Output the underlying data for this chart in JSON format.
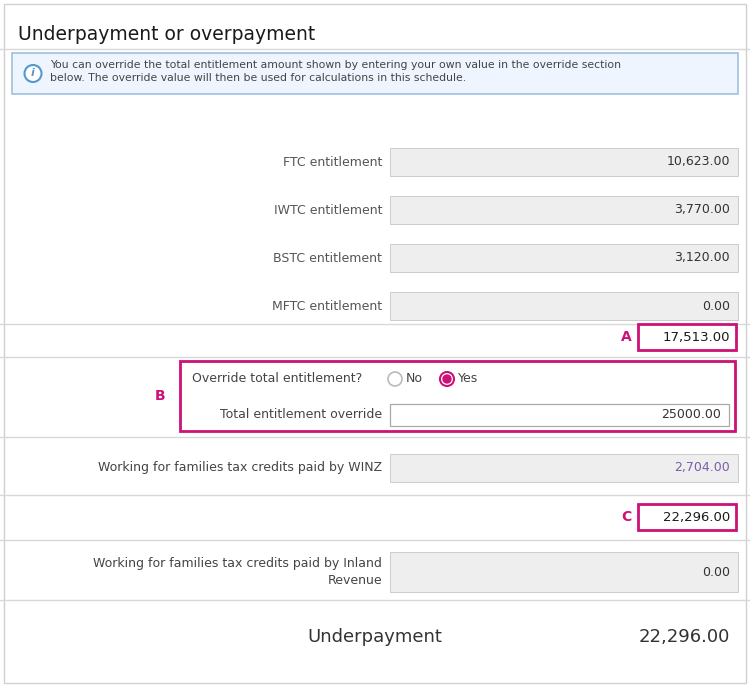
{
  "title": "Underpayment or overpayment",
  "info_text_line1": "You can override the total entitlement amount shown by entering your own value in the override section",
  "info_text_line2": "below. The override value will then be used for calculations in this schedule.",
  "rows": [
    {
      "label": "FTC entitlement",
      "value": "10,623.00"
    },
    {
      "label": "IWTC entitlement",
      "value": "3,770.00"
    },
    {
      "label": "BSTC entitlement",
      "value": "3,120.00"
    },
    {
      "label": "MFTC entitlement",
      "value": "0.00"
    }
  ],
  "total_A": "17,513.00",
  "label_A": "A",
  "override_question": "Override total entitlement?",
  "no_label": "No",
  "yes_label": "Yes",
  "override_label": "Total entitlement override",
  "override_value": "25000.00",
  "winz_label": "Working for families tax credits paid by WINZ",
  "winz_value": "2,704.00",
  "winz_color": "#7B5EA7",
  "total_C": "22,296.00",
  "label_C": "C",
  "ir_label_line1": "Working for families tax credits paid by Inland",
  "ir_label_line2": "Revenue",
  "ir_value": "0.00",
  "underpayment_label": "Underpayment",
  "underpayment_value": "22,296.00",
  "highlight_color": "#CC1177",
  "bg_color": "#ffffff",
  "field_bg": "#eeeeee",
  "text_color": "#555555",
  "info_bg": "#EEF5FF",
  "info_border": "#a0c0e0",
  "label_B": "B",
  "sep_color": "#d8d8d8",
  "border_color": "#cccccc"
}
